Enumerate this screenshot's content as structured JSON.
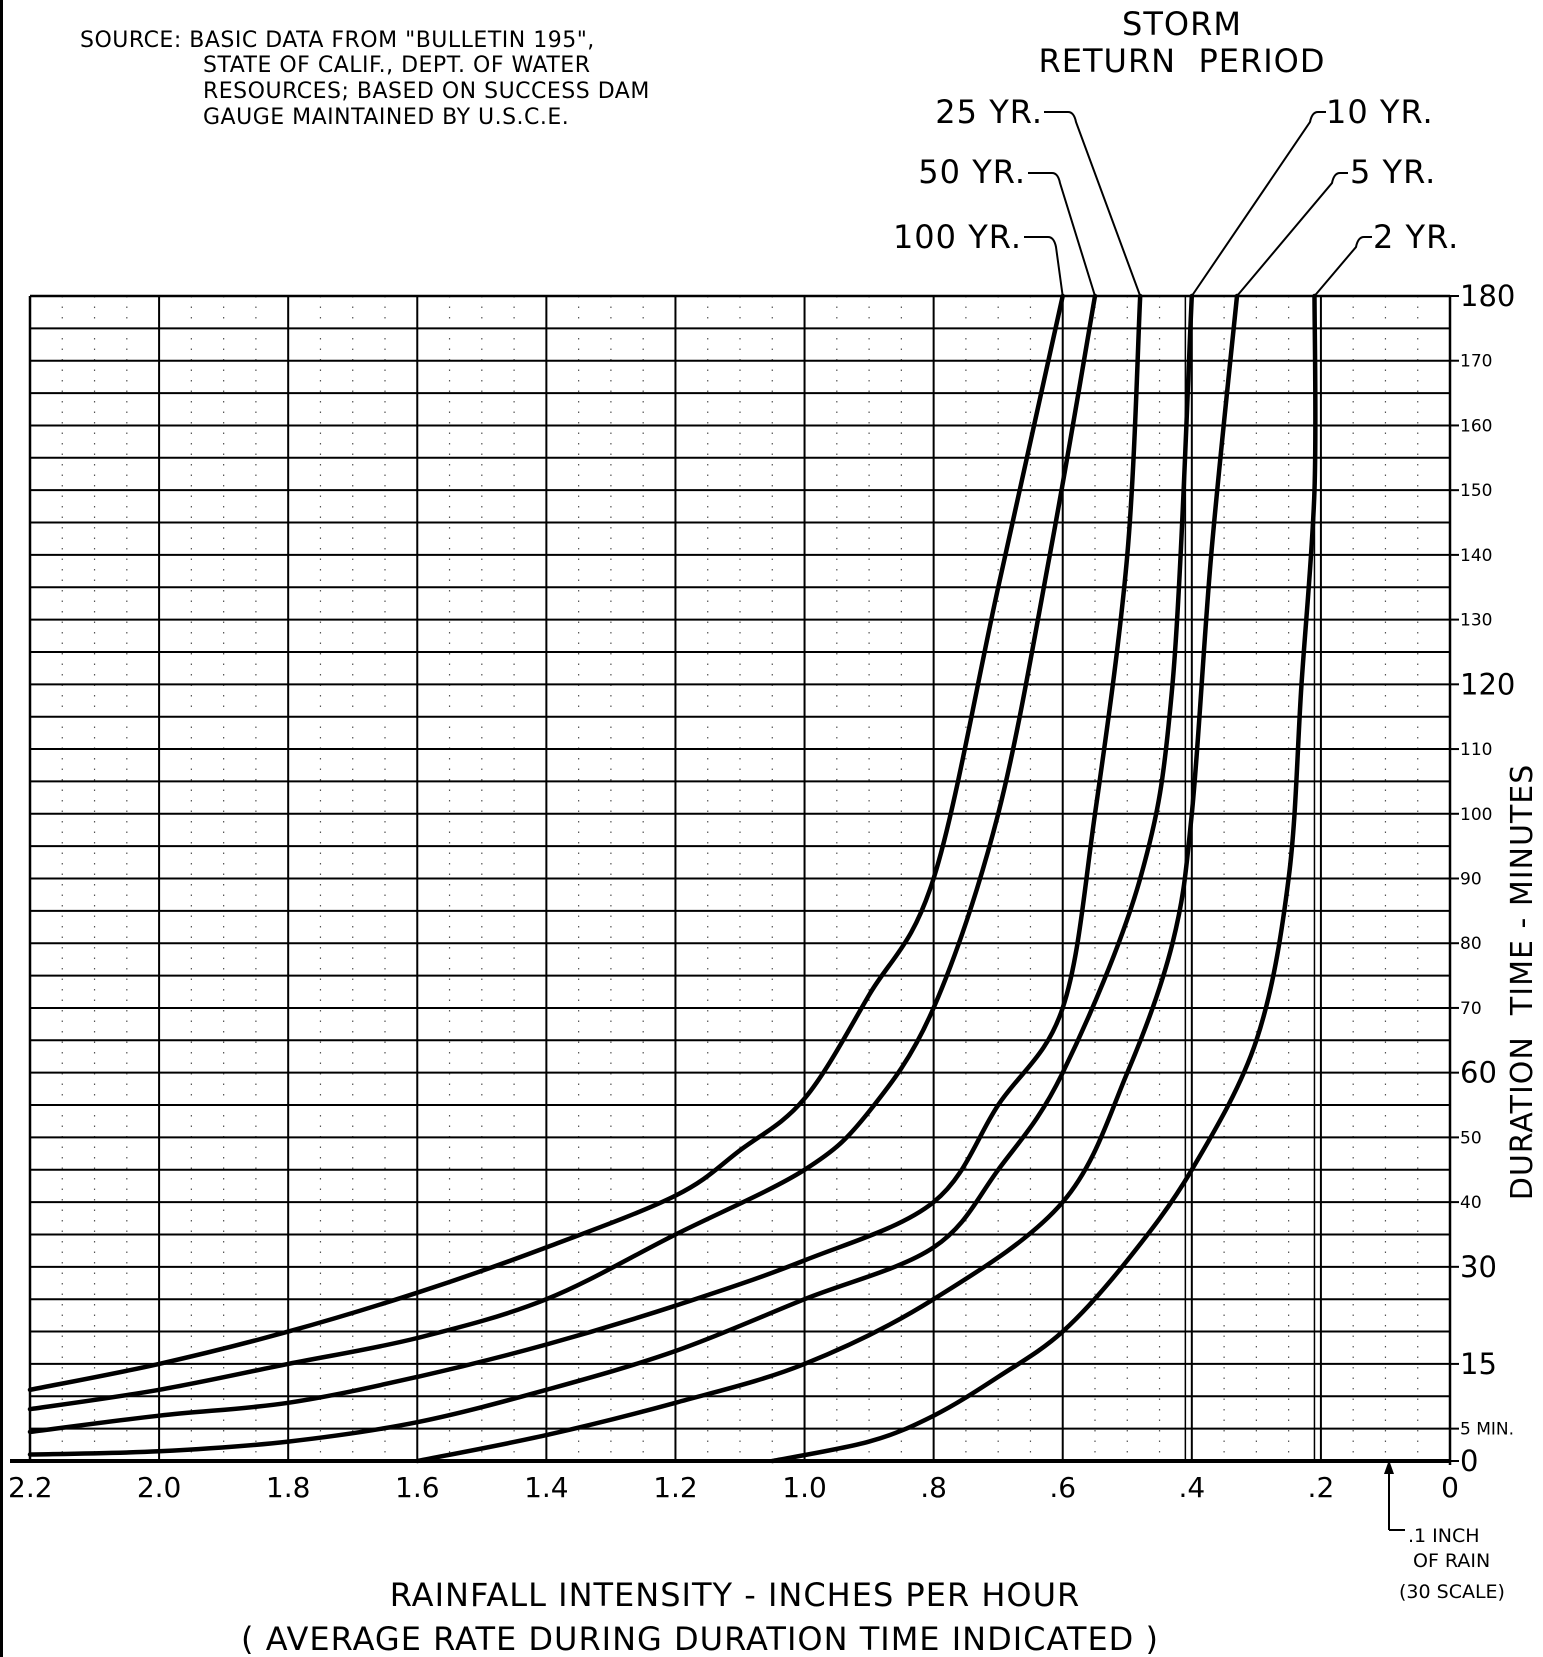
{
  "header": {
    "source_lines": [
      "SOURCE: BASIC DATA FROM \"BULLETIN 195\",",
      "STATE OF CALIF., DEPT. OF WATER",
      "RESOURCES; BASED ON SUCCESS DAM",
      "GAUGE MAINTAINED BY U.S.C.E."
    ],
    "legend_title_1": "STORM",
    "legend_title_2": "RETURN  PERIOD"
  },
  "note": {
    "line1": ".1 INCH",
    "line2": "OF RAIN",
    "line3": "(30 SCALE)"
  },
  "chart_data": {
    "type": "line",
    "title": "",
    "xlabel": "RAINFALL INTENSITY - INCHES PER HOUR",
    "xlabel_sub": "( AVERAGE RATE DURING DURATION TIME INDICATED )",
    "ylabel": "DURATION  TIME - MINUTES",
    "x_reversed": true,
    "xlim": [
      0,
      2.2
    ],
    "ylim": [
      0,
      180
    ],
    "x_ticks": [
      {
        "value": 2.2,
        "label": "2.2"
      },
      {
        "value": 2.0,
        "label": "2.0"
      },
      {
        "value": 1.8,
        "label": "1.8"
      },
      {
        "value": 1.6,
        "label": "1.6"
      },
      {
        "value": 1.4,
        "label": "1.4"
      },
      {
        "value": 1.2,
        "label": "1.2"
      },
      {
        "value": 1.0,
        "label": "1.0"
      },
      {
        "value": 0.8,
        "label": ".8"
      },
      {
        "value": 0.6,
        "label": ".6"
      },
      {
        "value": 0.4,
        "label": ".4"
      },
      {
        "value": 0.2,
        "label": ".2"
      },
      {
        "value": 0,
        "label": "0"
      }
    ],
    "y_ticks": [
      {
        "value": 180,
        "label": "180",
        "major": true
      },
      {
        "value": 170,
        "label": "170",
        "major": false
      },
      {
        "value": 160,
        "label": "160",
        "major": false
      },
      {
        "value": 150,
        "label": "150",
        "major": false
      },
      {
        "value": 140,
        "label": "140",
        "major": false
      },
      {
        "value": 130,
        "label": "130",
        "major": false
      },
      {
        "value": 120,
        "label": "120",
        "major": true
      },
      {
        "value": 110,
        "label": "110",
        "major": false
      },
      {
        "value": 100,
        "label": "100",
        "major": false
      },
      {
        "value": 90,
        "label": "90",
        "major": false
      },
      {
        "value": 80,
        "label": "80",
        "major": false
      },
      {
        "value": 70,
        "label": "70",
        "major": false
      },
      {
        "value": 60,
        "label": "60",
        "major": true
      },
      {
        "value": 50,
        "label": "50",
        "major": false
      },
      {
        "value": 40,
        "label": "40",
        "major": false
      },
      {
        "value": 30,
        "label": "30",
        "major": true
      },
      {
        "value": 15,
        "label": "15",
        "major": true
      },
      {
        "value": 5,
        "label": "5 MIN.",
        "major": false
      },
      {
        "value": 0,
        "label": "0",
        "major": true
      }
    ],
    "grid": true,
    "series": [
      {
        "name": "100 YR.",
        "points": [
          [
            2.2,
            11
          ],
          [
            2.0,
            15
          ],
          [
            1.8,
            20
          ],
          [
            1.6,
            26
          ],
          [
            1.4,
            33
          ],
          [
            1.2,
            41
          ],
          [
            1.1,
            48
          ],
          [
            1.0,
            56
          ],
          [
            0.9,
            72
          ],
          [
            0.8,
            90
          ],
          [
            0.7,
            135
          ],
          [
            0.6,
            180
          ]
        ]
      },
      {
        "name": "50 YR.",
        "points": [
          [
            2.2,
            8
          ],
          [
            2.0,
            11
          ],
          [
            1.8,
            15
          ],
          [
            1.6,
            19
          ],
          [
            1.4,
            25
          ],
          [
            1.2,
            35
          ],
          [
            1.0,
            45
          ],
          [
            0.9,
            54
          ],
          [
            0.8,
            70
          ],
          [
            0.7,
            100
          ],
          [
            0.62,
            140
          ],
          [
            0.55,
            180
          ]
        ]
      },
      {
        "name": "25 YR.",
        "points": [
          [
            2.2,
            4.5
          ],
          [
            2.0,
            7
          ],
          [
            1.8,
            9
          ],
          [
            1.6,
            13
          ],
          [
            1.4,
            18
          ],
          [
            1.2,
            24
          ],
          [
            1.0,
            31
          ],
          [
            0.8,
            40
          ],
          [
            0.7,
            55
          ],
          [
            0.6,
            70
          ],
          [
            0.55,
            100
          ],
          [
            0.5,
            140
          ],
          [
            0.48,
            180
          ]
        ]
      },
      {
        "name": "10 YR.",
        "points": [
          [
            2.2,
            1
          ],
          [
            2.0,
            1.5
          ],
          [
            1.8,
            3
          ],
          [
            1.6,
            6
          ],
          [
            1.4,
            11
          ],
          [
            1.2,
            17
          ],
          [
            1.0,
            25
          ],
          [
            0.8,
            33
          ],
          [
            0.7,
            45
          ],
          [
            0.6,
            60
          ],
          [
            0.48,
            90
          ],
          [
            0.43,
            120
          ],
          [
            0.4,
            180
          ]
        ]
      },
      {
        "name": "5 YR.",
        "points": [
          [
            1.6,
            0
          ],
          [
            1.4,
            4
          ],
          [
            1.2,
            9
          ],
          [
            1.0,
            15
          ],
          [
            0.8,
            25
          ],
          [
            0.6,
            40
          ],
          [
            0.5,
            60
          ],
          [
            0.43,
            80
          ],
          [
            0.4,
            100
          ],
          [
            0.37,
            140
          ],
          [
            0.33,
            180
          ]
        ]
      },
      {
        "name": "2 YR.",
        "points": [
          [
            1.05,
            0
          ],
          [
            0.9,
            3
          ],
          [
            0.8,
            7
          ],
          [
            0.7,
            13
          ],
          [
            0.6,
            20
          ],
          [
            0.5,
            31
          ],
          [
            0.4,
            45
          ],
          [
            0.3,
            65
          ],
          [
            0.25,
            90
          ],
          [
            0.23,
            120
          ],
          [
            0.21,
            150
          ],
          [
            0.21,
            180
          ]
        ]
      }
    ]
  }
}
